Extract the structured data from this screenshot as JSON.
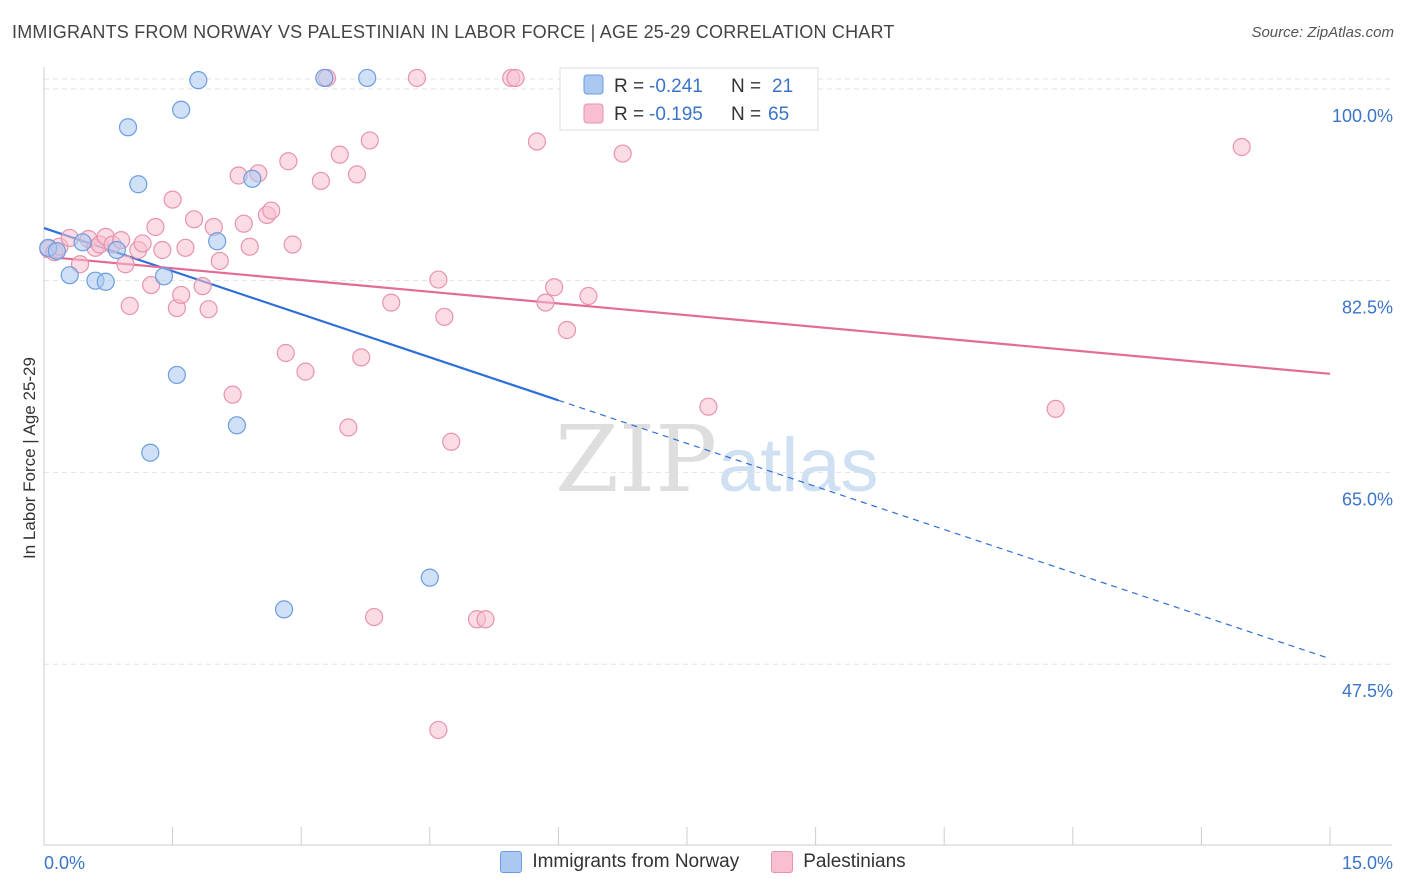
{
  "title": "IMMIGRANTS FROM NORWAY VS PALESTINIAN IN LABOR FORCE | AGE 25-29 CORRELATION CHART",
  "source": "Source: ZipAtlas.com",
  "watermark": {
    "zip": "ZIP",
    "atlas": "atlas"
  },
  "colors": {
    "norway_fill": "#aac8f0",
    "norway_stroke": "#6b9de0",
    "norway_line": "#2d6fd6",
    "pal_fill": "#f7bfd0",
    "pal_stroke": "#e893ad",
    "pal_line": "#e26b97",
    "grid": "#e3e3e3",
    "axis_text": "#3a74c9"
  },
  "stats": {
    "norway": {
      "r_label": "R = ",
      "r_value": "-0.241",
      "n_label": "N = ",
      "n_value": "21"
    },
    "pal": {
      "r_label": "R = ",
      "r_value": "-0.195",
      "n_label": "N = ",
      "n_value": "65"
    }
  },
  "chart_data": {
    "type": "scatter",
    "title": "IMMIGRANTS FROM NORWAY VS PALESTINIAN IN LABOR FORCE | AGE 25-29 CORRELATION CHART",
    "xlabel": "",
    "ylabel": "In Labor Force | Age 25-29",
    "xlim": [
      0,
      15
    ],
    "ylim": [
      31,
      102
    ],
    "x_tick_labels": [
      {
        "value": 0,
        "label": "0.0%"
      },
      {
        "value": 15,
        "label": "15.0%"
      }
    ],
    "y_ticks": [
      {
        "value": 47.5,
        "label": "47.5%"
      },
      {
        "value": 65.0,
        "label": "65.0%"
      },
      {
        "value": 82.5,
        "label": "82.5%"
      },
      {
        "value": 100.0,
        "label": "100.0%"
      }
    ],
    "grid": true,
    "legend_position": "bottom-center",
    "series": [
      {
        "name": "Immigrants from Norway",
        "points": [
          [
            0.05,
            85.5
          ],
          [
            0.15,
            85.2
          ],
          [
            0.3,
            83.0
          ],
          [
            0.45,
            86.0
          ],
          [
            0.6,
            82.5
          ],
          [
            0.72,
            82.4
          ],
          [
            0.85,
            85.3
          ],
          [
            0.98,
            96.5
          ],
          [
            1.1,
            91.3
          ],
          [
            1.4,
            82.9
          ],
          [
            1.55,
            73.9
          ],
          [
            1.6,
            98.1
          ],
          [
            1.8,
            100.8
          ],
          [
            2.02,
            86.1
          ],
          [
            2.25,
            69.3
          ],
          [
            2.43,
            91.8
          ],
          [
            2.8,
            52.5
          ],
          [
            3.27,
            101.0
          ],
          [
            3.77,
            101.0
          ],
          [
            4.5,
            55.4
          ],
          [
            1.24,
            66.8
          ]
        ],
        "trend": {
          "x0": 0,
          "y0": 87.3,
          "x1": 15,
          "y1": 48.0,
          "solid_until_x": 6.0
        }
      },
      {
        "name": "Palestinians",
        "points": [
          [
            0.05,
            85.4
          ],
          [
            0.12,
            85.1
          ],
          [
            0.18,
            85.6
          ],
          [
            0.3,
            86.4
          ],
          [
            0.42,
            84.0
          ],
          [
            0.52,
            86.3
          ],
          [
            0.6,
            85.5
          ],
          [
            0.65,
            85.8
          ],
          [
            0.72,
            86.5
          ],
          [
            0.8,
            85.8
          ],
          [
            0.9,
            86.2
          ],
          [
            0.95,
            84.0
          ],
          [
            1.0,
            80.2
          ],
          [
            1.1,
            85.3
          ],
          [
            1.15,
            85.9
          ],
          [
            1.25,
            82.1
          ],
          [
            1.3,
            87.4
          ],
          [
            1.38,
            85.3
          ],
          [
            1.5,
            89.9
          ],
          [
            1.55,
            80.0
          ],
          [
            1.6,
            81.2
          ],
          [
            1.65,
            85.5
          ],
          [
            1.75,
            88.1
          ],
          [
            1.85,
            82.0
          ],
          [
            1.92,
            79.9
          ],
          [
            1.98,
            87.4
          ],
          [
            2.05,
            84.3
          ],
          [
            2.2,
            72.1
          ],
          [
            2.27,
            92.1
          ],
          [
            2.33,
            87.7
          ],
          [
            2.4,
            85.6
          ],
          [
            2.5,
            92.3
          ],
          [
            2.6,
            88.5
          ],
          [
            2.65,
            88.9
          ],
          [
            2.82,
            75.9
          ],
          [
            2.85,
            93.4
          ],
          [
            2.9,
            85.8
          ],
          [
            3.05,
            74.2
          ],
          [
            3.23,
            91.6
          ],
          [
            3.3,
            101.0
          ],
          [
            3.45,
            94.0
          ],
          [
            3.55,
            69.1
          ],
          [
            3.65,
            92.2
          ],
          [
            3.7,
            75.5
          ],
          [
            3.8,
            95.3
          ],
          [
            3.85,
            51.8
          ],
          [
            4.05,
            80.5
          ],
          [
            4.35,
            101.0
          ],
          [
            4.67,
            79.2
          ],
          [
            4.6,
            82.6
          ],
          [
            4.75,
            67.8
          ],
          [
            4.6,
            41.5
          ],
          [
            5.05,
            51.6
          ],
          [
            5.15,
            51.6
          ],
          [
            5.45,
            101.0
          ],
          [
            5.5,
            101.0
          ],
          [
            5.75,
            95.2
          ],
          [
            5.85,
            80.5
          ],
          [
            5.95,
            81.9
          ],
          [
            6.1,
            78.0
          ],
          [
            6.35,
            81.1
          ],
          [
            6.75,
            94.1
          ],
          [
            7.75,
            71.0
          ],
          [
            11.8,
            70.8
          ],
          [
            13.97,
            94.7
          ]
        ],
        "trend": {
          "x0": 0,
          "y0": 84.7,
          "x1": 15,
          "y1": 74.0,
          "solid_until_x": 15
        }
      }
    ]
  }
}
